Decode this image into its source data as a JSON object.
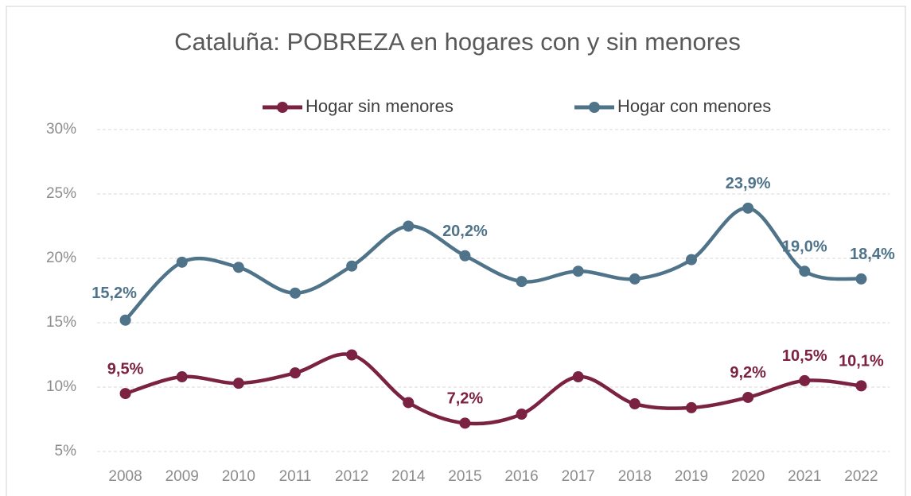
{
  "chart_data": {
    "type": "line",
    "title": "Cataluña: POBREZA en hogares con y sin menores",
    "categories": [
      "2008",
      "2009",
      "2010",
      "2011",
      "2012",
      "2014",
      "2015",
      "2016",
      "2017",
      "2018",
      "2019",
      "2020",
      "2021",
      "2022"
    ],
    "series": [
      {
        "name": "Hogar sin menores",
        "color": "#7b2142",
        "values": [
          9.5,
          10.8,
          10.3,
          11.1,
          12.5,
          8.8,
          7.2,
          7.9,
          10.8,
          8.7,
          8.4,
          9.2,
          10.5,
          10.1
        ],
        "value_labels": [
          "9,5%",
          null,
          null,
          null,
          null,
          null,
          "7,2%",
          null,
          null,
          null,
          null,
          "9,2%",
          "10,5%",
          "10,1%"
        ]
      },
      {
        "name": "Hogar con menores",
        "color": "#4f7389",
        "values": [
          15.2,
          19.7,
          19.3,
          17.3,
          19.4,
          22.5,
          20.2,
          18.2,
          19.0,
          18.4,
          19.9,
          23.9,
          19.0,
          18.4
        ],
        "value_labels": [
          "15,2%",
          null,
          null,
          null,
          null,
          null,
          "20,2%",
          null,
          null,
          null,
          null,
          "23,9%",
          "19,0%",
          "18,4%"
        ]
      }
    ],
    "ylim": [
      5,
      30
    ],
    "yticks": [
      {
        "value": 5,
        "label": "5%"
      },
      {
        "value": 10,
        "label": "10%"
      },
      {
        "value": 15,
        "label": "15%"
      },
      {
        "value": 20,
        "label": "20%"
      },
      {
        "value": 25,
        "label": "25%"
      },
      {
        "value": 30,
        "label": "30%"
      }
    ],
    "grid": true,
    "legend": "top",
    "smooth": true
  }
}
